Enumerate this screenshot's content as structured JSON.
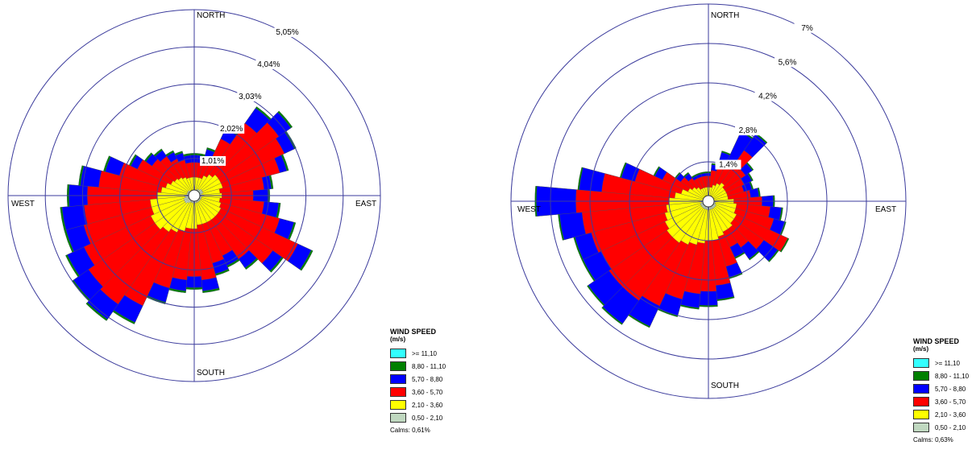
{
  "legend": {
    "title": "WIND SPEED",
    "units": "(m/s)",
    "bins": [
      {
        "label": ">= 11,10",
        "color": "#33ffff"
      },
      {
        "label": "8,80 - 11,10",
        "color": "#008000"
      },
      {
        "label": "5,70 - 8,80",
        "color": "#0000ff"
      },
      {
        "label": "3,60 - 5,70",
        "color": "#ff0000"
      },
      {
        "label": "2,10 - 3,60",
        "color": "#ffff00"
      },
      {
        "label": "0,50 - 2,10",
        "color": "#c0d8c0"
      }
    ]
  },
  "directions": {
    "north": "NORTH",
    "east": "EAST",
    "south": "SOUTH",
    "west": "WEST"
  },
  "chart_data": [
    {
      "type": "windrose",
      "sectors": 36,
      "sector_centers_deg": [
        0,
        10,
        20,
        30,
        40,
        50,
        60,
        70,
        80,
        90,
        100,
        110,
        120,
        130,
        140,
        150,
        160,
        170,
        180,
        190,
        200,
        210,
        220,
        230,
        240,
        250,
        260,
        270,
        280,
        290,
        300,
        310,
        320,
        330,
        340,
        350
      ],
      "ring_labels": [
        "1,01%",
        "2,02%",
        "3,03%",
        "4,04%",
        "5,05%"
      ],
      "ring_values": [
        1.01,
        2.02,
        3.03,
        4.04,
        5.05
      ],
      "rmax": 5.05,
      "calms": "Calms: 0,61%",
      "cumulative_percent": {
        "0,50 - 2,10": [
          0.15,
          0.15,
          0.15,
          0.2,
          0.2,
          0.25,
          0.25,
          0.25,
          0.2,
          0.25,
          0.2,
          0.2,
          0.2,
          0.2,
          0.2,
          0.2,
          0.2,
          0.2,
          0.2,
          0.2,
          0.2,
          0.2,
          0.25,
          0.3,
          0.3,
          0.3,
          0.25,
          0.25,
          0.2,
          0.2,
          0.2,
          0.2,
          0.15,
          0.15,
          0.15,
          0.15
        ],
        "2,10 - 3,60": [
          0.5,
          0.5,
          0.5,
          0.6,
          0.7,
          0.8,
          0.8,
          0.8,
          0.7,
          0.75,
          0.7,
          0.75,
          0.8,
          0.8,
          0.8,
          0.8,
          0.8,
          0.8,
          0.9,
          0.9,
          1.0,
          1.1,
          1.2,
          1.3,
          1.3,
          1.2,
          1.2,
          1.0,
          0.9,
          0.8,
          0.7,
          0.65,
          0.6,
          0.55,
          0.5,
          0.5
        ],
        "3,60 - 5,70": [
          0.9,
          0.9,
          1.1,
          1.7,
          2.4,
          2.8,
          2.7,
          2.4,
          1.9,
          1.6,
          1.9,
          2.4,
          3.1,
          2.6,
          2.1,
          1.8,
          1.9,
          2.3,
          2.2,
          2.3,
          2.6,
          3.3,
          3.6,
          3.5,
          3.3,
          3.1,
          3.0,
          2.9,
          2.6,
          2.1,
          1.7,
          1.4,
          1.3,
          1.1,
          1.0,
          0.9
        ],
        "5,70 - 8,80": [
          1.1,
          1.1,
          1.3,
          2.0,
          2.9,
          3.2,
          3.0,
          2.6,
          2.1,
          2.0,
          2.3,
          2.8,
          3.5,
          2.9,
          2.4,
          2.1,
          2.2,
          2.6,
          2.5,
          2.6,
          3.0,
          3.8,
          4.1,
          4.0,
          3.8,
          3.6,
          3.6,
          3.4,
          3.1,
          2.5,
          1.9,
          1.6,
          1.5,
          1.3,
          1.2,
          1.1
        ],
        "8,80 - 11,10": [
          1.15,
          1.15,
          1.35,
          2.05,
          2.95,
          3.25,
          3.05,
          2.65,
          2.15,
          2.05,
          2.35,
          2.85,
          3.55,
          2.95,
          2.45,
          2.15,
          2.25,
          2.65,
          2.55,
          2.65,
          3.05,
          3.85,
          4.15,
          4.05,
          3.85,
          3.65,
          3.65,
          3.45,
          3.15,
          2.55,
          1.95,
          1.65,
          1.55,
          1.35,
          1.25,
          1.15
        ],
        ">= 11,10": [
          1.15,
          1.15,
          1.35,
          2.05,
          2.95,
          3.25,
          3.05,
          2.65,
          2.15,
          2.05,
          2.35,
          2.85,
          3.55,
          2.95,
          2.45,
          2.15,
          2.25,
          2.65,
          2.55,
          2.65,
          3.05,
          3.85,
          4.15,
          4.05,
          3.85,
          3.65,
          3.65,
          3.45,
          3.15,
          2.55,
          1.95,
          1.65,
          1.55,
          1.35,
          1.25,
          1.15
        ]
      }
    },
    {
      "type": "windrose",
      "sectors": 36,
      "sector_centers_deg": [
        0,
        10,
        20,
        30,
        40,
        50,
        60,
        70,
        80,
        90,
        100,
        110,
        120,
        130,
        140,
        150,
        160,
        170,
        180,
        190,
        200,
        210,
        220,
        230,
        240,
        250,
        260,
        270,
        280,
        290,
        300,
        310,
        320,
        330,
        340,
        350
      ],
      "ring_labels": [
        "1,4%",
        "2,8%",
        "4,2%",
        "5,6%",
        "7%"
      ],
      "ring_values": [
        1.4,
        2.8,
        4.2,
        5.6,
        7.0
      ],
      "rmax": 7.0,
      "calms": "Calms: 0,63%",
      "cumulative_percent": {
        "0,50 - 2,10": [
          0.15,
          0.15,
          0.15,
          0.2,
          0.2,
          0.2,
          0.2,
          0.2,
          0.2,
          0.2,
          0.25,
          0.25,
          0.3,
          0.3,
          0.3,
          0.3,
          0.3,
          0.3,
          0.3,
          0.3,
          0.3,
          0.3,
          0.3,
          0.3,
          0.3,
          0.3,
          0.25,
          0.25,
          0.2,
          0.2,
          0.2,
          0.2,
          0.15,
          0.15,
          0.15,
          0.15
        ],
        "2,10 - 3,60": [
          0.5,
          0.5,
          0.6,
          0.7,
          0.8,
          0.7,
          0.7,
          0.7,
          0.7,
          0.9,
          1.0,
          1.0,
          1.1,
          1.1,
          1.2,
          1.2,
          1.3,
          1.4,
          1.4,
          1.5,
          1.6,
          1.7,
          1.8,
          1.8,
          1.7,
          1.6,
          1.5,
          1.4,
          1.2,
          1.0,
          0.8,
          0.7,
          0.6,
          0.5,
          0.5,
          0.5
        ],
        "3,60 - 5,70": [
          0.9,
          1.1,
          1.4,
          1.6,
          2.2,
          1.6,
          1.4,
          1.3,
          1.5,
          1.9,
          2.2,
          2.4,
          3.1,
          2.4,
          2.0,
          1.8,
          2.4,
          3.0,
          3.2,
          3.3,
          3.6,
          4.1,
          4.3,
          4.3,
          4.2,
          4.3,
          4.5,
          4.7,
          3.8,
          2.7,
          1.8,
          1.2,
          1.0,
          0.9,
          0.9,
          0.9
        ],
        "5,70 - 8,80": [
          1.0,
          1.3,
          1.8,
          2.7,
          2.9,
          1.9,
          1.7,
          1.6,
          1.8,
          2.3,
          2.6,
          2.8,
          3.1,
          3.0,
          2.5,
          2.2,
          2.8,
          3.5,
          3.7,
          3.8,
          4.2,
          4.9,
          5.3,
          5.2,
          4.9,
          4.9,
          5.3,
          6.1,
          4.6,
          3.2,
          2.1,
          1.4,
          1.2,
          1.0,
          1.0,
          1.0
        ],
        "8,80 - 11,10": [
          1.05,
          1.35,
          1.85,
          2.75,
          2.95,
          1.95,
          1.75,
          1.65,
          1.85,
          2.35,
          2.65,
          2.85,
          3.15,
          3.05,
          2.55,
          2.25,
          2.85,
          3.55,
          3.75,
          3.85,
          4.25,
          4.95,
          5.35,
          5.25,
          4.95,
          4.95,
          5.35,
          6.15,
          4.65,
          3.25,
          2.15,
          1.45,
          1.25,
          1.05,
          1.05,
          1.05
        ],
        ">= 11,10": [
          1.05,
          1.35,
          1.85,
          2.75,
          2.95,
          1.95,
          1.75,
          1.65,
          1.85,
          2.35,
          2.65,
          2.85,
          3.15,
          3.05,
          2.55,
          2.25,
          2.85,
          3.55,
          3.75,
          3.85,
          4.25,
          4.95,
          5.35,
          5.25,
          4.95,
          4.95,
          5.35,
          6.15,
          4.65,
          3.25,
          2.15,
          1.45,
          1.25,
          1.05,
          1.05,
          1.05
        ]
      }
    }
  ]
}
